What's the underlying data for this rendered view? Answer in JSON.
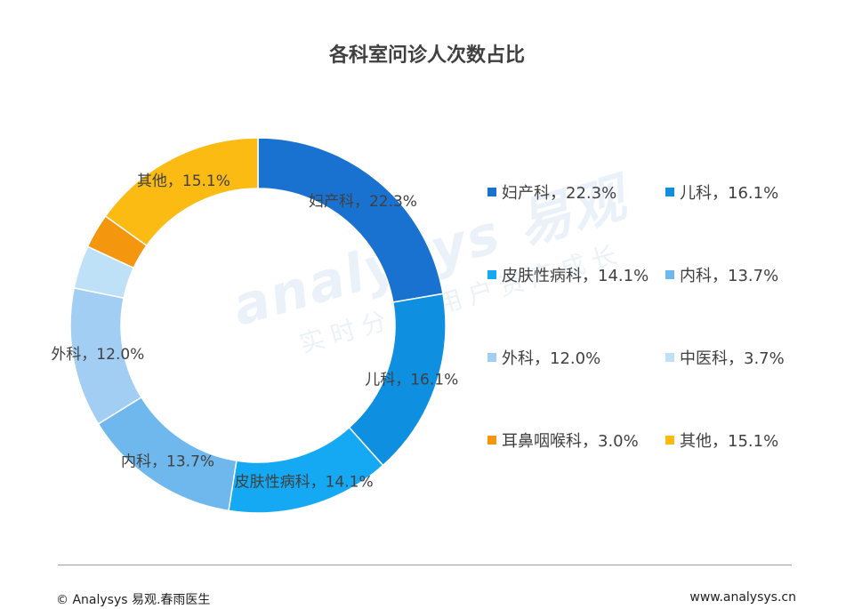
{
  "chart_data": {
    "type": "pie",
    "variant": "donut",
    "title": "各科室问诊人次数占比",
    "slices": [
      {
        "name": "妇产科",
        "value": 22.3,
        "color": "#1a72d0",
        "slice_label": "妇产科，22.3%",
        "legend_label": "妇产科，22.3%"
      },
      {
        "name": "儿科",
        "value": 16.1,
        "color": "#0f8fe0",
        "slice_label": "儿科，16.1%",
        "legend_label": "儿科，16.1%"
      },
      {
        "name": "皮肤性病科",
        "value": 14.1,
        "color": "#14a9f2",
        "slice_label": "皮肤性病科，14.1%",
        "legend_label": "皮肤性病科，14.1%"
      },
      {
        "name": "内科",
        "value": 13.7,
        "color": "#6fb8ee",
        "slice_label": "内科，13.7%",
        "legend_label": "内科，13.7%"
      },
      {
        "name": "外科",
        "value": 12.0,
        "color": "#a2cef3",
        "slice_label": "外科，12.0%",
        "legend_label": "外科，12.0%"
      },
      {
        "name": "中医科",
        "value": 3.7,
        "color": "#bfe1f8",
        "slice_label": "",
        "legend_label": "中医科，3.7%"
      },
      {
        "name": "耳鼻咽喉科",
        "value": 3.0,
        "color": "#f5960f",
        "slice_label": "",
        "legend_label": "耳鼻咽喉科，3.0%"
      },
      {
        "name": "其他",
        "value": 15.1,
        "color": "#fbbb12",
        "slice_label": "其他，15.1%",
        "legend_label": "其他，15.1%"
      }
    ],
    "legend_position": "right",
    "legend_columns": 2
  },
  "watermark": {
    "logo": "analysys 易观",
    "tagline": "实时分析 用户资产成长"
  },
  "footer": {
    "left": "© Analysys 易观.春雨医生",
    "right": "www.analysys.cn"
  }
}
